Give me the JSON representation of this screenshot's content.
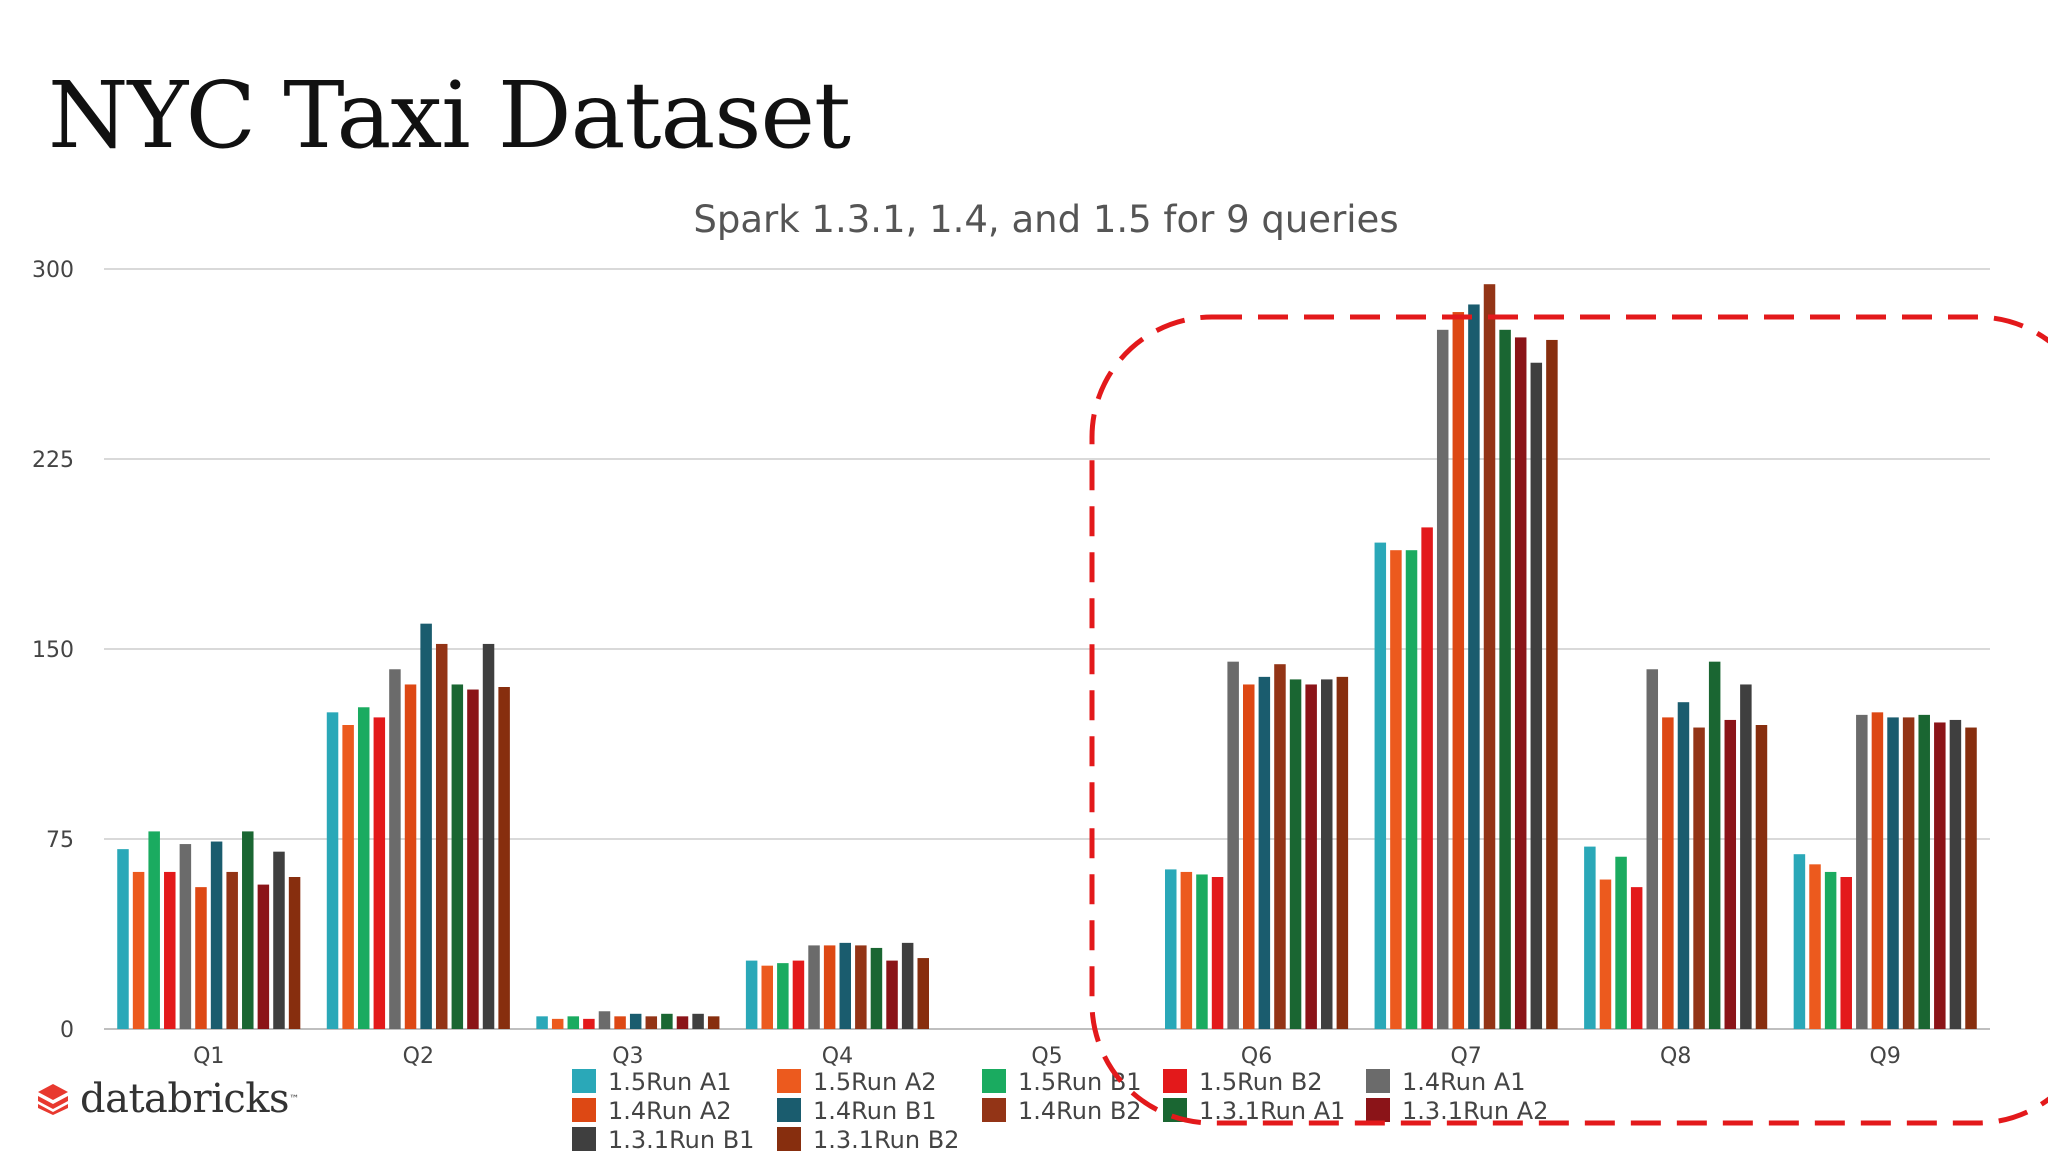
{
  "slide": {
    "title": "NYC Taxi Dataset",
    "logo_text": "databricks",
    "logo_mark": "™"
  },
  "colors": {
    "highlight": "#e3191b",
    "grid": "#d9d9d9",
    "axis": "#bfbfbf"
  },
  "chart_data": {
    "type": "bar",
    "title": "Spark 1.3.1, 1.4, and 1.5 for 9 queries",
    "xlabel": "",
    "ylabel": "",
    "ylim": [
      0,
      300
    ],
    "yticks": [
      0,
      75,
      150,
      225,
      300
    ],
    "grid": true,
    "legend_position": "bottom",
    "categories": [
      "Q1",
      "Q2",
      "Q3",
      "Q4",
      "Q5",
      "Q6",
      "Q7",
      "Q8",
      "Q9"
    ],
    "series": [
      {
        "name": "1.5Run A1",
        "color": "#2aa8b8",
        "values": [
          71,
          125,
          5,
          27,
          0,
          63,
          192,
          72,
          69
        ]
      },
      {
        "name": "1.5Run A2",
        "color": "#ec5a1e",
        "values": [
          62,
          120,
          4,
          25,
          0,
          62,
          189,
          59,
          65
        ]
      },
      {
        "name": "1.5Run B1",
        "color": "#1aab60",
        "values": [
          78,
          127,
          5,
          26,
          0,
          61,
          189,
          68,
          62
        ]
      },
      {
        "name": "1.5Run B2",
        "color": "#e3191b",
        "values": [
          62,
          123,
          4,
          27,
          0,
          60,
          198,
          56,
          60
        ]
      },
      {
        "name": "1.4Run A1",
        "color": "#6b6b6b",
        "values": [
          73,
          142,
          7,
          33,
          0,
          145,
          276,
          142,
          124
        ]
      },
      {
        "name": "1.4Run A2",
        "color": "#dd4814",
        "values": [
          56,
          136,
          5,
          33,
          0,
          136,
          283,
          123,
          125
        ]
      },
      {
        "name": "1.4Run B1",
        "color": "#1a5c6e",
        "values": [
          74,
          160,
          6,
          34,
          0,
          139,
          286,
          129,
          123
        ]
      },
      {
        "name": "1.4Run B2",
        "color": "#933416",
        "values": [
          62,
          152,
          5,
          33,
          0,
          144,
          294,
          119,
          123
        ]
      },
      {
        "name": "1.3.1Run A1",
        "color": "#1a6632",
        "values": [
          78,
          136,
          6,
          32,
          0,
          138,
          276,
          145,
          124
        ]
      },
      {
        "name": "1.3.1Run A2",
        "color": "#8b1418",
        "values": [
          57,
          134,
          5,
          27,
          0,
          136,
          273,
          122,
          121
        ]
      },
      {
        "name": "1.3.1Run B1",
        "color": "#3f3f3f",
        "values": [
          70,
          152,
          6,
          34,
          0,
          138,
          263,
          136,
          122
        ]
      },
      {
        "name": "1.3.1Run B2",
        "color": "#872e0e",
        "values": [
          60,
          135,
          5,
          28,
          0,
          139,
          272,
          120,
          119
        ]
      }
    ]
  }
}
